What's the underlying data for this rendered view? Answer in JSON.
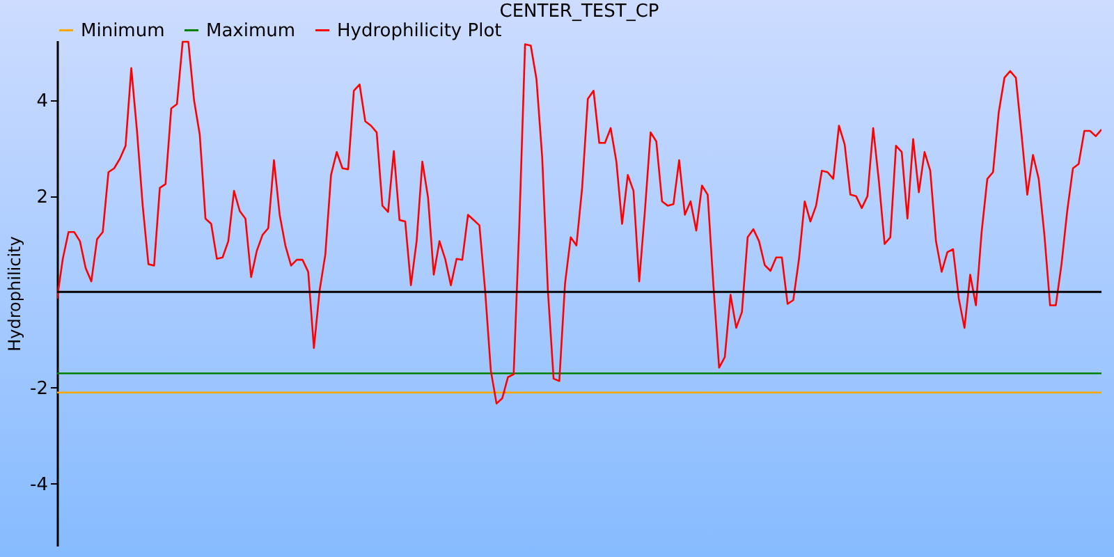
{
  "chart_data": {
    "type": "line",
    "title": "CENTER_TEST_CP",
    "ylabel": "Hydrophilicity",
    "categories": [
      null,
      null,
      null,
      null,
      null,
      null,
      null,
      null,
      null,
      null,
      null,
      null,
      null,
      null,
      null,
      null,
      null,
      null,
      null,
      null,
      null,
      null,
      null,
      null,
      null,
      null,
      null,
      null,
      null,
      null,
      null,
      null,
      null,
      null,
      null,
      null,
      null,
      null,
      null,
      null,
      null,
      null,
      null,
      null,
      null,
      null,
      null,
      null,
      null,
      null,
      null,
      null,
      null,
      null,
      null,
      null,
      null,
      null,
      null,
      null,
      null,
      null,
      null,
      null,
      null,
      null,
      null,
      null,
      null,
      null,
      null,
      null,
      null,
      null,
      null,
      null,
      null,
      null,
      null,
      null,
      null,
      null,
      null,
      null,
      null,
      null,
      null,
      null,
      null,
      null,
      null,
      null,
      null,
      null,
      null,
      null,
      null,
      null,
      null,
      null,
      null,
      null,
      null,
      null,
      null,
      null,
      null,
      null,
      null,
      null,
      null,
      null,
      null,
      null,
      null,
      null,
      null,
      null,
      null,
      null,
      null,
      null,
      null,
      null,
      null,
      null,
      null,
      null,
      null,
      null,
      null,
      null,
      null,
      null,
      null,
      null,
      null,
      null,
      null,
      null,
      null,
      null,
      null,
      null,
      null,
      null,
      null,
      null,
      null,
      null,
      null,
      null,
      null,
      null,
      null,
      null,
      null,
      null,
      null,
      null,
      null,
      null,
      null,
      null,
      null,
      null,
      null,
      null,
      null,
      null,
      null,
      null,
      null,
      null,
      null,
      null,
      null,
      null,
      null,
      null,
      null,
      null,
      null,
      null
    ],
    "ylim": [
      -5.3,
      5.25
    ],
    "yticks": [
      -4,
      -2,
      2,
      4
    ],
    "tick_labels": "y",
    "grid": false,
    "legend": "top",
    "marker": "none",
    "line_style": "solid",
    "ref_lines": [
      {
        "axis": "y",
        "value": 0,
        "color": "#000000"
      }
    ],
    "series": [
      {
        "name": "Minimum",
        "color": "#ffa500",
        "values": [
          -2.1,
          -2.1,
          -2.1,
          -2.1,
          -2.1,
          -2.1,
          -2.1,
          -2.1,
          -2.1,
          -2.1,
          -2.1,
          -2.1,
          -2.1,
          -2.1,
          -2.1,
          -2.1,
          -2.1,
          -2.1,
          -2.1,
          -2.1,
          -2.1,
          -2.1,
          -2.1,
          -2.1,
          -2.1,
          -2.1,
          -2.1,
          -2.1,
          -2.1,
          -2.1,
          -2.1,
          -2.1,
          -2.1,
          -2.1,
          -2.1,
          -2.1,
          -2.1,
          -2.1,
          -2.1,
          -2.1,
          -2.1,
          -2.1,
          -2.1,
          -2.1,
          -2.1,
          -2.1,
          -2.1,
          -2.1,
          -2.1,
          -2.1,
          -2.1,
          -2.1,
          -2.1,
          -2.1,
          -2.1,
          -2.1,
          -2.1,
          -2.1,
          -2.1,
          -2.1,
          -2.1,
          -2.1,
          -2.1,
          -2.1,
          -2.1,
          -2.1,
          -2.1,
          -2.1,
          -2.1,
          -2.1,
          -2.1,
          -2.1,
          -2.1,
          -2.1,
          -2.1,
          -2.1,
          -2.1,
          -2.1,
          -2.1,
          -2.1,
          -2.1,
          -2.1,
          -2.1,
          -2.1,
          -2.1,
          -2.1,
          -2.1,
          -2.1,
          -2.1,
          -2.1,
          -2.1,
          -2.1,
          -2.1,
          -2.1,
          -2.1,
          -2.1,
          -2.1,
          -2.1,
          -2.1,
          -2.1,
          -2.1,
          -2.1,
          -2.1,
          -2.1,
          -2.1,
          -2.1,
          -2.1,
          -2.1,
          -2.1,
          -2.1,
          -2.1,
          -2.1,
          -2.1,
          -2.1,
          -2.1,
          -2.1,
          -2.1,
          -2.1,
          -2.1,
          -2.1,
          -2.1,
          -2.1,
          -2.1,
          -2.1,
          -2.1,
          -2.1,
          -2.1,
          -2.1,
          -2.1,
          -2.1,
          -2.1,
          -2.1,
          -2.1,
          -2.1,
          -2.1,
          -2.1,
          -2.1,
          -2.1,
          -2.1,
          -2.1,
          -2.1,
          -2.1,
          -2.1,
          -2.1,
          -2.1,
          -2.1,
          -2.1,
          -2.1,
          -2.1,
          -2.1,
          -2.1,
          -2.1,
          -2.1,
          -2.1,
          -2.1,
          -2.1,
          -2.1,
          -2.1,
          -2.1,
          -2.1,
          -2.1,
          -2.1,
          -2.1,
          -2.1,
          -2.1,
          -2.1,
          -2.1,
          -2.1,
          -2.1,
          -2.1,
          -2.1,
          -2.1,
          -2.1,
          -2.1,
          -2.1,
          -2.1,
          -2.1,
          -2.1,
          -2.1,
          -2.1,
          -2.1,
          -2.1,
          -2.1,
          -2.1
        ]
      },
      {
        "name": "Maximum",
        "color": "#008000",
        "values": [
          -1.7,
          -1.7,
          -1.7,
          -1.7,
          -1.7,
          -1.7,
          -1.7,
          -1.7,
          -1.7,
          -1.7,
          -1.7,
          -1.7,
          -1.7,
          -1.7,
          -1.7,
          -1.7,
          -1.7,
          -1.7,
          -1.7,
          -1.7,
          -1.7,
          -1.7,
          -1.7,
          -1.7,
          -1.7,
          -1.7,
          -1.7,
          -1.7,
          -1.7,
          -1.7,
          -1.7,
          -1.7,
          -1.7,
          -1.7,
          -1.7,
          -1.7,
          -1.7,
          -1.7,
          -1.7,
          -1.7,
          -1.7,
          -1.7,
          -1.7,
          -1.7,
          -1.7,
          -1.7,
          -1.7,
          -1.7,
          -1.7,
          -1.7,
          -1.7,
          -1.7,
          -1.7,
          -1.7,
          -1.7,
          -1.7,
          -1.7,
          -1.7,
          -1.7,
          -1.7,
          -1.7,
          -1.7,
          -1.7,
          -1.7,
          -1.7,
          -1.7,
          -1.7,
          -1.7,
          -1.7,
          -1.7,
          -1.7,
          -1.7,
          -1.7,
          -1.7,
          -1.7,
          -1.7,
          -1.7,
          -1.7,
          -1.7,
          -1.7,
          -1.7,
          -1.7,
          -1.7,
          -1.7,
          -1.7,
          -1.7,
          -1.7,
          -1.7,
          -1.7,
          -1.7,
          -1.7,
          -1.7,
          -1.7,
          -1.7,
          -1.7,
          -1.7,
          -1.7,
          -1.7,
          -1.7,
          -1.7,
          -1.7,
          -1.7,
          -1.7,
          -1.7,
          -1.7,
          -1.7,
          -1.7,
          -1.7,
          -1.7,
          -1.7,
          -1.7,
          -1.7,
          -1.7,
          -1.7,
          -1.7,
          -1.7,
          -1.7,
          -1.7,
          -1.7,
          -1.7,
          -1.7,
          -1.7,
          -1.7,
          -1.7,
          -1.7,
          -1.7,
          -1.7,
          -1.7,
          -1.7,
          -1.7,
          -1.7,
          -1.7,
          -1.7,
          -1.7,
          -1.7,
          -1.7,
          -1.7,
          -1.7,
          -1.7,
          -1.7,
          -1.7,
          -1.7,
          -1.7,
          -1.7,
          -1.7,
          -1.7,
          -1.7,
          -1.7,
          -1.7,
          -1.7,
          -1.7,
          -1.7,
          -1.7,
          -1.7,
          -1.7,
          -1.7,
          -1.7,
          -1.7,
          -1.7,
          -1.7,
          -1.7,
          -1.7,
          -1.7,
          -1.7,
          -1.7,
          -1.7,
          -1.7,
          -1.7,
          -1.7,
          -1.7,
          -1.7,
          -1.7,
          -1.7,
          -1.7,
          -1.7,
          -1.7,
          -1.7,
          -1.7,
          -1.7,
          -1.7,
          -1.7,
          -1.7,
          -1.7,
          -1.7
        ]
      },
      {
        "name": "Hydrophilicity Plot",
        "color": "#ff0000",
        "values": [
          -0.14,
          0.69,
          1.25,
          1.25,
          1.06,
          0.5,
          0.22,
          1.1,
          1.25,
          2.5,
          2.58,
          2.78,
          3.05,
          4.67,
          3.36,
          1.8,
          0.58,
          0.55,
          2.17,
          2.25,
          3.83,
          3.92,
          5.22,
          5.22,
          4.0,
          3.28,
          1.53,
          1.42,
          0.69,
          0.72,
          1.06,
          2.11,
          1.69,
          1.53,
          0.31,
          0.86,
          1.19,
          1.33,
          2.75,
          1.61,
          0.97,
          0.55,
          0.67,
          0.67,
          0.42,
          -1.17,
          0.03,
          0.78,
          2.44,
          2.92,
          2.58,
          2.56,
          4.2,
          4.33,
          3.56,
          3.47,
          3.33,
          1.8,
          1.67,
          2.94,
          1.5,
          1.47,
          0.14,
          1.06,
          2.72,
          1.97,
          0.36,
          1.06,
          0.69,
          0.14,
          0.69,
          0.67,
          1.61,
          1.5,
          1.39,
          0.03,
          -1.64,
          -2.33,
          -2.22,
          -1.78,
          -1.72,
          1.42,
          5.17,
          5.14,
          4.44,
          2.81,
          0.03,
          -1.81,
          -1.86,
          0.17,
          1.14,
          0.97,
          2.17,
          4.03,
          4.2,
          3.11,
          3.11,
          3.42,
          2.72,
          1.42,
          2.44,
          2.11,
          0.22,
          1.69,
          3.33,
          3.14,
          1.89,
          1.8,
          1.83,
          2.75,
          1.61,
          1.89,
          1.28,
          2.22,
          2.03,
          0.14,
          -1.58,
          -1.36,
          -0.06,
          -0.75,
          -0.42,
          1.14,
          1.31,
          1.06,
          0.56,
          0.44,
          0.72,
          0.72,
          -0.25,
          -0.17,
          0.69,
          1.89,
          1.47,
          1.8,
          2.53,
          2.5,
          2.36,
          3.47,
          3.08,
          2.03,
          2.0,
          1.75,
          2.0,
          3.42,
          2.31,
          1.0,
          1.14,
          3.05,
          2.92,
          1.53,
          3.19,
          2.08,
          2.92,
          2.53,
          1.06,
          0.42,
          0.83,
          0.89,
          -0.14,
          -0.75,
          0.36,
          -0.28,
          1.25,
          2.36,
          2.5,
          3.75,
          4.47,
          4.61,
          4.47,
          3.28,
          2.03,
          2.86,
          2.36,
          1.19,
          -0.28,
          -0.28,
          0.58,
          1.69,
          2.58,
          2.67,
          3.36,
          3.36,
          3.25,
          3.39
        ]
      }
    ]
  }
}
